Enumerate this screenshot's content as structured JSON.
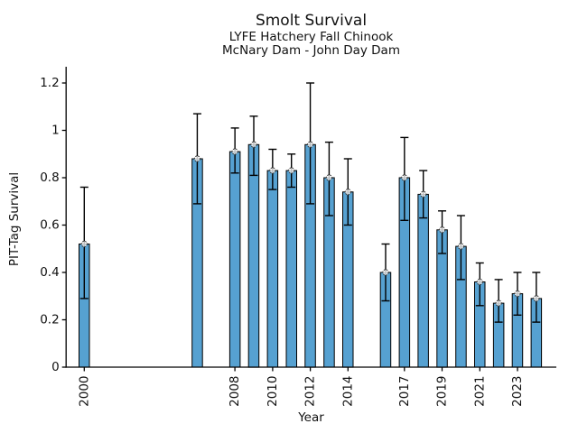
{
  "header": {
    "title": "Smolt Survival",
    "subtitle_line1": "LYFE Hatchery Fall Chinook",
    "subtitle_line2": "McNary Dam - John Day Dam"
  },
  "chart_data": {
    "type": "bar",
    "title": "Smolt Survival",
    "subtitle_line1": "LYFE Hatchery Fall Chinook",
    "subtitle_line2": "McNary Dam - John Day Dam",
    "xlabel": "Year",
    "ylabel": "PIT-Tag Survival",
    "xlim": [
      1999,
      2025
    ],
    "ylim": [
      0,
      1.265
    ],
    "grid": false,
    "legend": "none",
    "bar_color": "#56a1d1",
    "bar_edge_color": "#000000",
    "error_bar_color": "#000000",
    "y_ticks": [
      {
        "value": 0,
        "label": "0"
      },
      {
        "value": 0.2,
        "label": "0.2"
      },
      {
        "value": 0.4,
        "label": "0.4"
      },
      {
        "value": 0.6,
        "label": "0.6"
      },
      {
        "value": 0.8,
        "label": "0.8"
      },
      {
        "value": 1,
        "label": "1"
      },
      {
        "value": 1.2,
        "label": "1.2"
      }
    ],
    "x_ticks": [
      {
        "year": 2000,
        "label": "2000"
      },
      {
        "year": 2008,
        "label": "2008"
      },
      {
        "year": 2010,
        "label": "2010"
      },
      {
        "year": 2012,
        "label": "2012"
      },
      {
        "year": 2014,
        "label": "2014"
      },
      {
        "year": 2017,
        "label": "2017"
      },
      {
        "year": 2019,
        "label": "2019"
      },
      {
        "year": 2021,
        "label": "2021"
      },
      {
        "year": 2023,
        "label": "2023"
      }
    ],
    "series": [
      {
        "name": "PIT-Tag Survival",
        "points": [
          {
            "year": 2000,
            "value": 0.52,
            "err_low": 0.29,
            "err_high": 0.76
          },
          {
            "year": 2006,
            "value": 0.88,
            "err_low": 0.69,
            "err_high": 1.07
          },
          {
            "year": 2008,
            "value": 0.91,
            "err_low": 0.82,
            "err_high": 1.01
          },
          {
            "year": 2009,
            "value": 0.94,
            "err_low": 0.81,
            "err_high": 1.06
          },
          {
            "year": 2010,
            "value": 0.83,
            "err_low": 0.75,
            "err_high": 0.92
          },
          {
            "year": 2011,
            "value": 0.83,
            "err_low": 0.76,
            "err_high": 0.9
          },
          {
            "year": 2012,
            "value": 0.94,
            "err_low": 0.69,
            "err_high": 1.2
          },
          {
            "year": 2013,
            "value": 0.8,
            "err_low": 0.64,
            "err_high": 0.95
          },
          {
            "year": 2014,
            "value": 0.74,
            "err_low": 0.6,
            "err_high": 0.88
          },
          {
            "year": 2016,
            "value": 0.4,
            "err_low": 0.28,
            "err_high": 0.52
          },
          {
            "year": 2017,
            "value": 0.8,
            "err_low": 0.62,
            "err_high": 0.97
          },
          {
            "year": 2018,
            "value": 0.73,
            "err_low": 0.63,
            "err_high": 0.83
          },
          {
            "year": 2019,
            "value": 0.58,
            "err_low": 0.48,
            "err_high": 0.66
          },
          {
            "year": 2020,
            "value": 0.51,
            "err_low": 0.37,
            "err_high": 0.64
          },
          {
            "year": 2021,
            "value": 0.36,
            "err_low": 0.26,
            "err_high": 0.44
          },
          {
            "year": 2022,
            "value": 0.27,
            "err_low": 0.19,
            "err_high": 0.37
          },
          {
            "year": 2023,
            "value": 0.31,
            "err_low": 0.22,
            "err_high": 0.4
          },
          {
            "year": 2024,
            "value": 0.29,
            "err_low": 0.19,
            "err_high": 0.4
          }
        ]
      }
    ]
  }
}
